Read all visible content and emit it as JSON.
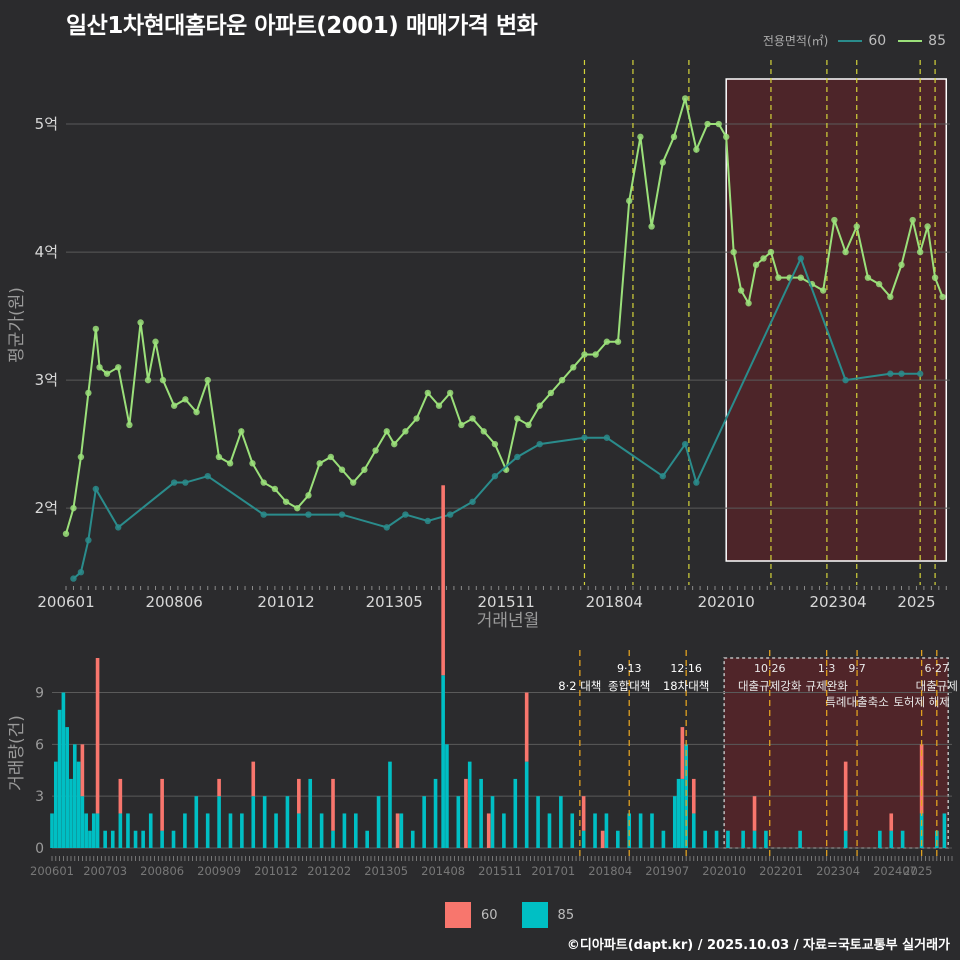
{
  "title": "일산1차현대홈타운 아파트(2001) 매매가격 변화",
  "credit": "©디아파트(dapt.kr) / 2025.10.03 / 자료=국토교통부 실거래가",
  "legend_top": {
    "label": "전용면적(㎡)",
    "items": [
      {
        "name": "60",
        "color": "#2a8c8c"
      },
      {
        "name": "85",
        "color": "#9be07a"
      }
    ]
  },
  "legend_bottom": {
    "items": [
      {
        "name": "60",
        "color": "#f8766d"
      },
      {
        "name": "85",
        "color": "#00bfc4"
      }
    ]
  },
  "chart_data": [
    {
      "type": "line",
      "ylabel": "평균가(원)",
      "xlabel": "거래년월",
      "y_ticks": [
        "2억",
        "3억",
        "4억",
        "5억"
      ],
      "y_tick_values": [
        2,
        3,
        4,
        5
      ],
      "ylim": [
        1.4,
        5.5
      ],
      "x_ticks": [
        "200601",
        "200806",
        "201012",
        "201305",
        "201511",
        "201804",
        "202010",
        "202304",
        "2025"
      ],
      "grid": true,
      "highlight_box": {
        "from": "202010",
        "to": "202509"
      },
      "series": [
        {
          "name": "85",
          "x": [
            "2006-01",
            "2006-03",
            "2006-05",
            "2006-07",
            "2006-09",
            "2006-10",
            "2006-12",
            "2007-03",
            "2007-06",
            "2007-09",
            "2007-11",
            "2008-01",
            "2008-03",
            "2008-06",
            "2008-09",
            "2008-12",
            "2009-03",
            "2009-06",
            "2009-09",
            "2009-12",
            "2010-03",
            "2010-06",
            "2010-09",
            "2010-12",
            "2011-03",
            "2011-06",
            "2011-09",
            "2011-12",
            "2012-03",
            "2012-06",
            "2012-09",
            "2012-12",
            "2013-03",
            "2013-05",
            "2013-08",
            "2013-11",
            "2014-02",
            "2014-05",
            "2014-08",
            "2014-11",
            "2015-02",
            "2015-05",
            "2015-08",
            "2015-11",
            "2016-02",
            "2016-05",
            "2016-08",
            "2016-11",
            "2017-02",
            "2017-05",
            "2017-08",
            "2017-11",
            "2018-02",
            "2018-05",
            "2018-08",
            "2018-11",
            "2019-02",
            "2019-05",
            "2019-08",
            "2019-11",
            "2020-02",
            "2020-05",
            "2020-08",
            "2020-10",
            "2020-12",
            "2021-02",
            "2021-04",
            "2021-06",
            "2021-08",
            "2021-10",
            "2021-12",
            "2022-03",
            "2022-06",
            "2022-09",
            "2022-12",
            "2023-03",
            "2023-06",
            "2023-09",
            "2023-12",
            "2024-03",
            "2024-06",
            "2024-09",
            "2024-12",
            "2025-02",
            "2025-04",
            "2025-06",
            "2025-08"
          ],
          "y": [
            1.8,
            2.0,
            2.4,
            2.9,
            3.4,
            3.1,
            3.05,
            3.1,
            2.65,
            3.45,
            3.0,
            3.3,
            3.0,
            2.8,
            2.85,
            2.75,
            3.0,
            2.4,
            2.35,
            2.6,
            2.35,
            2.2,
            2.15,
            2.05,
            2.0,
            2.1,
            2.35,
            2.4,
            2.3,
            2.2,
            2.3,
            2.45,
            2.6,
            2.5,
            2.6,
            2.7,
            2.9,
            2.8,
            2.9,
            2.65,
            2.7,
            2.6,
            2.5,
            2.3,
            2.7,
            2.65,
            2.8,
            2.9,
            3.0,
            3.1,
            3.2,
            3.2,
            3.3,
            3.3,
            4.4,
            4.9,
            4.2,
            4.7,
            4.9,
            5.2,
            4.8,
            5.0,
            5.0,
            4.9,
            4.0,
            3.7,
            3.6,
            3.9,
            3.95,
            4.0,
            3.8,
            3.8,
            3.8,
            3.75,
            3.7,
            4.25,
            4.0,
            4.2,
            3.8,
            3.75,
            3.65,
            3.9,
            4.25,
            4.0,
            4.2,
            3.8,
            3.65
          ],
          "color": "#9be07a"
        },
        {
          "name": "60",
          "x": [
            "2006-03",
            "2006-05",
            "2006-07",
            "2006-09",
            "2007-03",
            "2008-06",
            "2008-09",
            "2009-03",
            "2010-06",
            "2011-06",
            "2012-03",
            "2013-03",
            "2013-08",
            "2014-02",
            "2014-08",
            "2015-02",
            "2015-08",
            "2016-02",
            "2016-08",
            "2017-08",
            "2018-02",
            "2019-05",
            "2019-11",
            "2020-02",
            "2022-06",
            "2023-06",
            "2024-06",
            "2024-09",
            "2025-02"
          ],
          "y": [
            1.45,
            1.5,
            1.75,
            2.15,
            1.85,
            2.2,
            2.2,
            2.25,
            1.95,
            1.95,
            1.95,
            1.85,
            1.95,
            1.9,
            1.95,
            2.05,
            2.25,
            2.4,
            2.5,
            2.55,
            2.55,
            2.25,
            2.5,
            2.2,
            3.95,
            3.0,
            3.05,
            3.05,
            3.05
          ],
          "color": "#2a8c8c"
        }
      ]
    },
    {
      "type": "bar",
      "ylabel": "거래량(건)",
      "y_ticks": [
        "0",
        "3",
        "6",
        "9"
      ],
      "y_tick_values": [
        0,
        3,
        6,
        9
      ],
      "ylim": [
        0,
        11
      ],
      "x_ticks": [
        "200601",
        "200703",
        "200806",
        "200909",
        "201012",
        "201202",
        "201305",
        "201408",
        "201511",
        "201701",
        "201804",
        "201907",
        "202010",
        "202201",
        "202304",
        "202407",
        "2025"
      ],
      "grid": true,
      "highlight_box": {
        "from": "202010",
        "to": "202509"
      },
      "policy_events": [
        {
          "label_date": "",
          "label": "8·2 대책",
          "x": "2017-08"
        },
        {
          "label_date": "9·13",
          "label": "종합대책",
          "x": "2018-09"
        },
        {
          "label_date": "12·16",
          "label": "18차대책",
          "x": "2019-12"
        },
        {
          "label_date": "10·26",
          "label": "대출규제강화",
          "x": "2021-10"
        },
        {
          "label_date": "1·3",
          "label": "규제완화",
          "x": "2023-01"
        },
        {
          "label_date": "9·7",
          "label": "특례대출축소",
          "x": "2023-09"
        },
        {
          "label_date": "",
          "label": "토허제 해제",
          "x": "2025-02"
        },
        {
          "label_date": "6·27",
          "label": "대출규제",
          "x": "2025-06"
        }
      ],
      "series": [
        {
          "name": "85",
          "x": [
            "2006-01",
            "2006-02",
            "2006-03",
            "2006-04",
            "2006-05",
            "2006-06",
            "2006-07",
            "2006-08",
            "2006-09",
            "2006-10",
            "2006-11",
            "2006-12",
            "2007-01",
            "2007-03",
            "2007-05",
            "2007-07",
            "2007-09",
            "2007-11",
            "2008-01",
            "2008-03",
            "2008-06",
            "2008-09",
            "2008-12",
            "2009-03",
            "2009-06",
            "2009-09",
            "2009-12",
            "2010-03",
            "2010-06",
            "2010-09",
            "2010-12",
            "2011-03",
            "2011-06",
            "2011-09",
            "2011-12",
            "2012-03",
            "2012-06",
            "2012-09",
            "2012-12",
            "2013-03",
            "2013-06",
            "2013-09",
            "2013-12",
            "2014-03",
            "2014-06",
            "2014-08",
            "2014-09",
            "2014-12",
            "2015-03",
            "2015-06",
            "2015-09",
            "2015-12",
            "2016-03",
            "2016-06",
            "2016-09",
            "2016-12",
            "2017-03",
            "2017-06",
            "2017-09",
            "2017-12",
            "2018-03",
            "2018-06",
            "2018-09",
            "2018-12",
            "2019-03",
            "2019-06",
            "2019-09",
            "2019-10",
            "2019-11",
            "2019-12",
            "2020-02",
            "2020-05",
            "2020-08",
            "2020-11",
            "2021-03",
            "2021-06",
            "2021-09",
            "2022-06",
            "2023-06",
            "2024-03",
            "2024-06",
            "2024-09",
            "2025-02",
            "2025-06",
            "2025-08"
          ],
          "y": [
            2,
            5,
            8,
            9,
            7,
            4,
            6,
            5,
            3,
            2,
            1,
            2,
            2,
            1,
            1,
            2,
            2,
            1,
            1,
            2,
            1,
            1,
            2,
            3,
            2,
            3,
            2,
            2,
            3,
            3,
            2,
            3,
            2,
            4,
            2,
            1,
            2,
            2,
            1,
            3,
            5,
            2,
            1,
            3,
            4,
            10,
            6,
            3,
            5,
            4,
            3,
            2,
            4,
            5,
            3,
            2,
            3,
            2,
            1,
            2,
            2,
            1,
            2,
            2,
            2,
            1,
            3,
            4,
            4,
            6,
            2,
            1,
            1,
            1,
            1,
            1,
            1,
            1,
            1,
            1,
            1,
            1,
            2,
            1,
            2
          ],
          "color": "#00bfc4"
        },
        {
          "name": "60",
          "x": [
            "2006-09",
            "2007-01",
            "2007-07",
            "2008-06",
            "2009-09",
            "2010-06",
            "2011-06",
            "2012-03",
            "2013-08",
            "2014-08",
            "2015-02",
            "2015-08",
            "2016-06",
            "2017-09",
            "2018-02",
            "2019-11",
            "2020-02",
            "2021-06",
            "2023-06",
            "2024-06",
            "2025-02"
          ],
          "y": [
            3,
            9,
            2,
            3,
            1,
            2,
            2,
            3,
            2,
            11,
            4,
            2,
            4,
            2,
            1,
            3,
            2,
            2,
            4,
            1,
            4
          ],
          "color": "#f8766d"
        }
      ]
    }
  ]
}
